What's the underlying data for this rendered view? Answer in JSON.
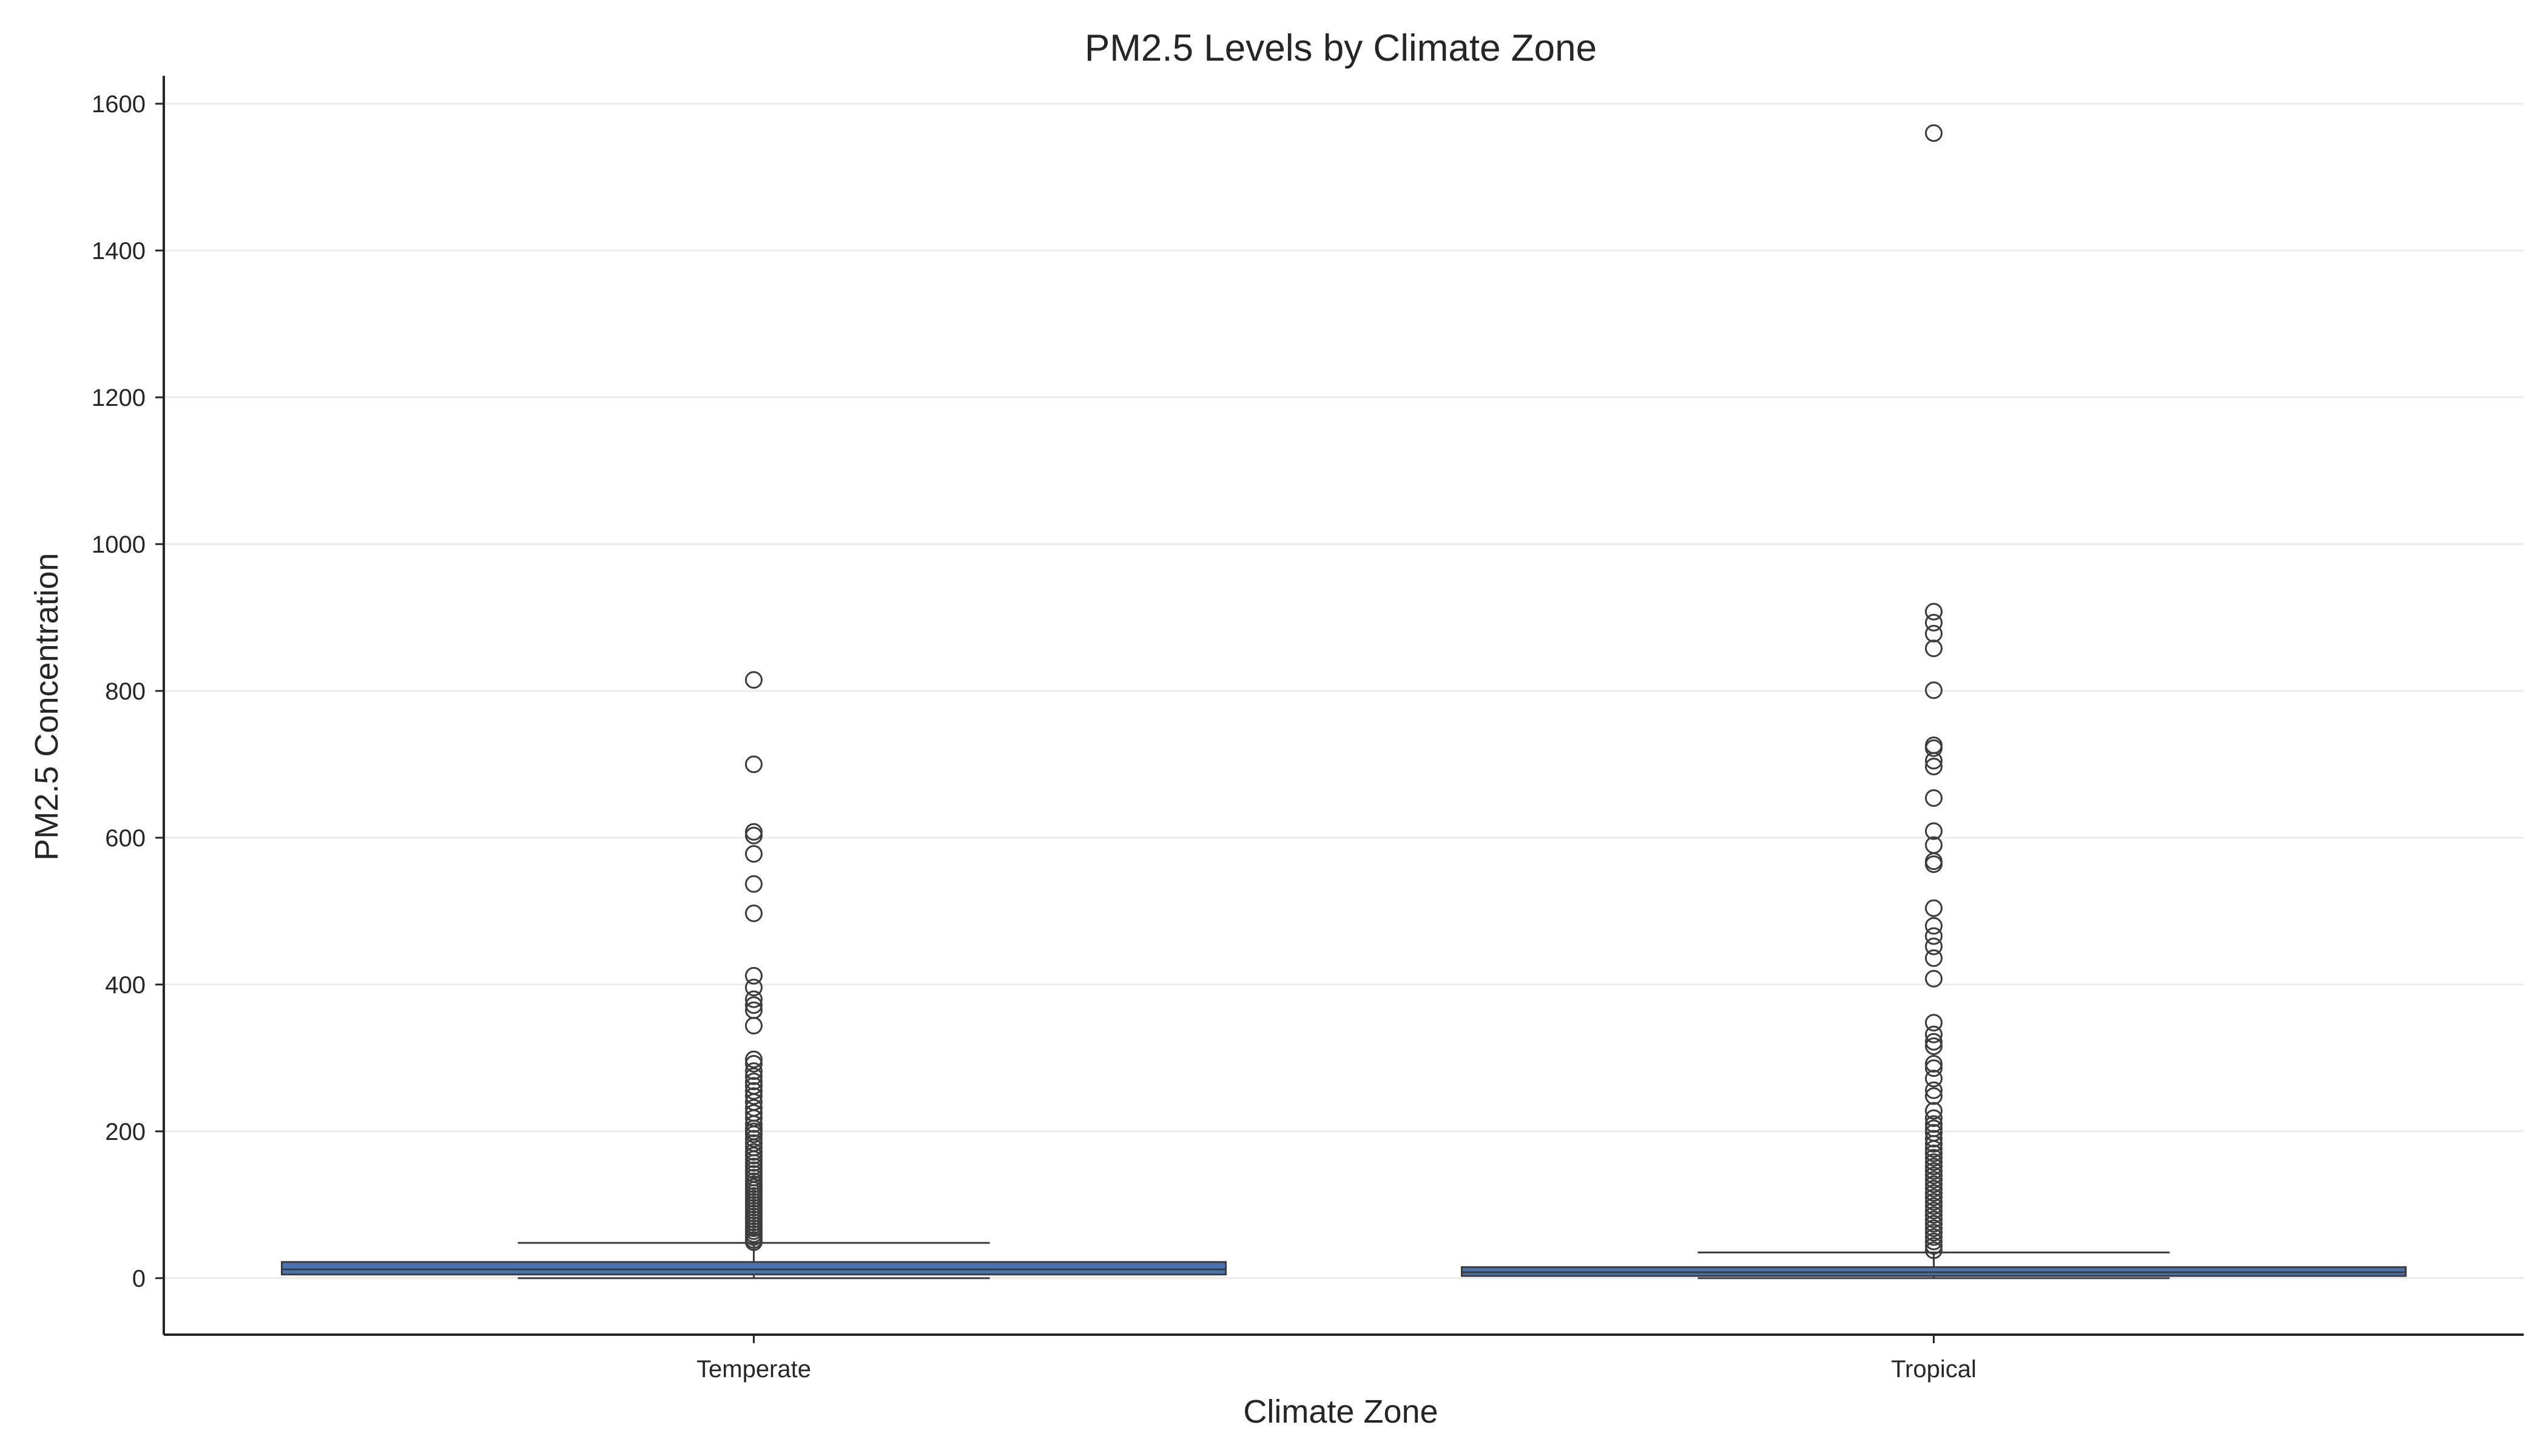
{
  "chart_data": {
    "type": "box",
    "title": "PM2.5 Levels by Climate Zone",
    "xlabel": "Climate Zone",
    "ylabel": "PM2.5 Concentration",
    "categories": [
      "Temperate",
      "Tropical"
    ],
    "ylim": [
      -77,
      1638
    ],
    "yticks": [
      0,
      200,
      400,
      600,
      800,
      1000,
      1200,
      1400,
      1600
    ],
    "grid": {
      "y": true,
      "x": false
    },
    "box_color": "#4c72b0",
    "edge_color": "#3d3d3d",
    "grid_color": "#ebebeb",
    "boxes": [
      {
        "category": "Temperate",
        "whisker_low": 0,
        "q1": 5,
        "median": 12,
        "q3": 22,
        "whisker_high": 48,
        "outliers": [
          815,
          700,
          608,
          603,
          578,
          537,
          497,
          412,
          396,
          380,
          372,
          365,
          344,
          298,
          292,
          282,
          275,
          268,
          262,
          255,
          248,
          240,
          232,
          225,
          218,
          210,
          204,
          200,
          196,
          190,
          184,
          178,
          172,
          167,
          162,
          157,
          152,
          147,
          142,
          137,
          132,
          128,
          124,
          120,
          116,
          112,
          108,
          104,
          100,
          96,
          92,
          88,
          84,
          80,
          76,
          72,
          68,
          64,
          60,
          56,
          52,
          49
        ]
      },
      {
        "category": "Tropical",
        "whisker_low": 0,
        "q1": 3,
        "median": 8,
        "q3": 15,
        "whisker_high": 35,
        "outliers": [
          1560,
          908,
          893,
          878,
          858,
          801,
          726,
          722,
          705,
          697,
          654,
          609,
          590,
          568,
          564,
          504,
          480,
          466,
          452,
          436,
          408,
          348,
          332,
          322,
          316,
          292,
          286,
          272,
          256,
          248,
          228,
          218,
          210,
          204,
          198,
          190,
          183,
          176,
          170,
          164,
          158,
          152,
          146,
          140,
          134,
          128,
          122,
          116,
          110,
          104,
          98,
          92,
          86,
          80,
          74,
          68,
          62,
          56,
          50,
          44,
          38
        ]
      }
    ]
  }
}
